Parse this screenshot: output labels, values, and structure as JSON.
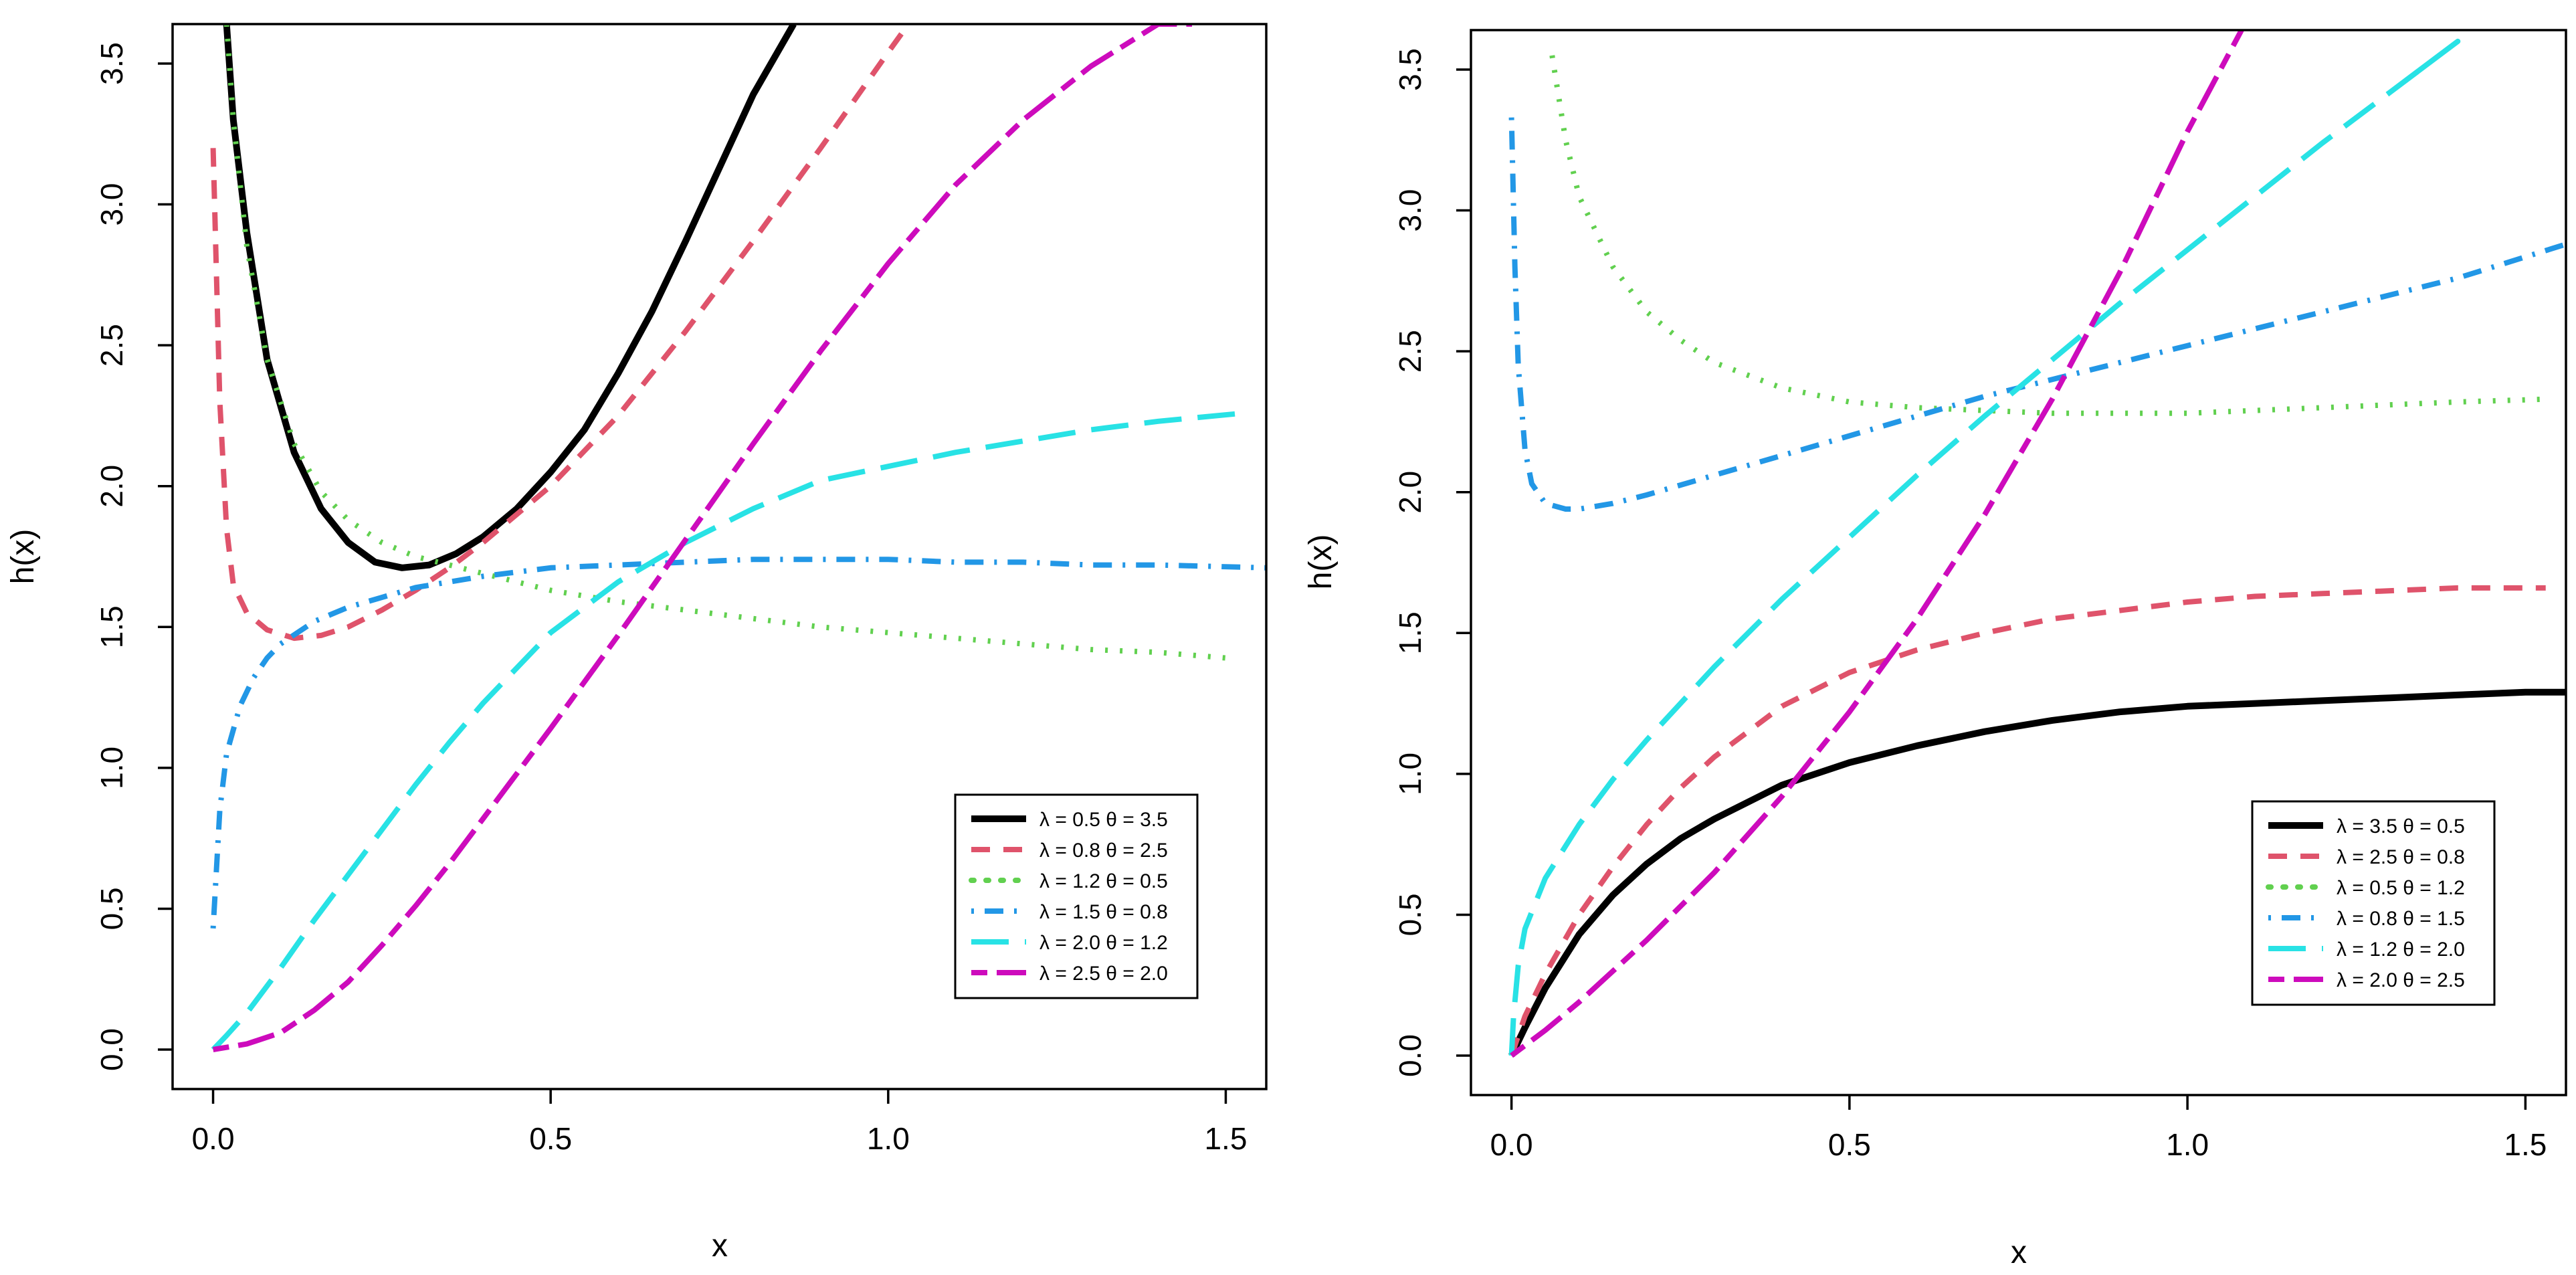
{
  "chart_data": [
    {
      "type": "line",
      "title": "",
      "xlabel": "x",
      "ylabel": "h(x)",
      "xlim": [
        -0.06,
        1.56
      ],
      "ylim": [
        -0.14,
        3.64
      ],
      "xticks": [
        "0.0",
        "0.5",
        "1.0",
        "1.5"
      ],
      "yticks": [
        "0.0",
        "0.5",
        "1.0",
        "1.5",
        "2.0",
        "2.5",
        "3.0",
        "3.5"
      ],
      "legend_position": "bottom-right",
      "series": [
        {
          "name": "λ = 0.5  θ = 3.5",
          "color": "#000000",
          "dash": "solid",
          "x": [
            0.02,
            0.03,
            0.05,
            0.08,
            0.12,
            0.16,
            0.2,
            0.24,
            0.28,
            0.32,
            0.36,
            0.4,
            0.45,
            0.5,
            0.55,
            0.6,
            0.65,
            0.7,
            0.75,
            0.8,
            0.86
          ],
          "y": [
            3.64,
            3.3,
            2.9,
            2.45,
            2.12,
            1.92,
            1.8,
            1.73,
            1.71,
            1.72,
            1.76,
            1.82,
            1.92,
            2.05,
            2.2,
            2.4,
            2.62,
            2.87,
            3.13,
            3.39,
            3.64
          ]
        },
        {
          "name": "λ = 0.8  θ = 2.5",
          "color": "#DF536B",
          "dash": "dashed",
          "x": [
            0.0,
            0.01,
            0.02,
            0.03,
            0.05,
            0.08,
            0.12,
            0.16,
            0.2,
            0.25,
            0.3,
            0.35,
            0.4,
            0.45,
            0.5,
            0.6,
            0.7,
            0.8,
            0.9,
            1.0,
            1.03
          ],
          "y": [
            3.2,
            2.3,
            1.85,
            1.65,
            1.55,
            1.49,
            1.46,
            1.47,
            1.5,
            1.56,
            1.63,
            1.71,
            1.8,
            1.9,
            2.0,
            2.25,
            2.55,
            2.87,
            3.2,
            3.54,
            3.64
          ]
        },
        {
          "name": "λ = 1.2  θ = 0.5",
          "color": "#61D04F",
          "dash": "dotted",
          "x": [
            0.02,
            0.03,
            0.05,
            0.08,
            0.12,
            0.16,
            0.2,
            0.25,
            0.3,
            0.35,
            0.4,
            0.5,
            0.6,
            0.7,
            0.8,
            0.9,
            1.0,
            1.1,
            1.2,
            1.3,
            1.4,
            1.5
          ],
          "y": [
            3.64,
            3.3,
            2.85,
            2.45,
            2.15,
            1.98,
            1.88,
            1.8,
            1.75,
            1.72,
            1.69,
            1.63,
            1.59,
            1.56,
            1.53,
            1.5,
            1.48,
            1.46,
            1.44,
            1.42,
            1.41,
            1.39
          ]
        },
        {
          "name": "λ = 1.5  θ = 0.8",
          "color": "#2297E6",
          "dash": "dotdash",
          "x": [
            0.0,
            0.01,
            0.02,
            0.04,
            0.06,
            0.08,
            0.1,
            0.15,
            0.2,
            0.3,
            0.4,
            0.5,
            0.6,
            0.7,
            0.8,
            0.9,
            1.0,
            1.1,
            1.2,
            1.3,
            1.4,
            1.56
          ],
          "y": [
            0.43,
            0.85,
            1.05,
            1.22,
            1.32,
            1.39,
            1.44,
            1.52,
            1.57,
            1.64,
            1.68,
            1.71,
            1.72,
            1.73,
            1.74,
            1.74,
            1.74,
            1.73,
            1.73,
            1.72,
            1.72,
            1.71
          ]
        },
        {
          "name": "λ = 2.0  θ = 1.2",
          "color": "#28E2E5",
          "dash": "longdash",
          "x": [
            0.0,
            0.02,
            0.05,
            0.1,
            0.15,
            0.2,
            0.25,
            0.3,
            0.35,
            0.4,
            0.5,
            0.6,
            0.7,
            0.8,
            0.9,
            1.0,
            1.1,
            1.2,
            1.3,
            1.4,
            1.53
          ],
          "y": [
            0.0,
            0.05,
            0.13,
            0.29,
            0.46,
            0.62,
            0.78,
            0.94,
            1.09,
            1.23,
            1.48,
            1.66,
            1.8,
            1.92,
            2.02,
            2.07,
            2.12,
            2.16,
            2.2,
            2.23,
            2.26
          ]
        },
        {
          "name": "λ = 2.5  θ = 2.0",
          "color": "#CD0BBC",
          "dash": "twodash",
          "x": [
            0.0,
            0.05,
            0.1,
            0.15,
            0.2,
            0.25,
            0.3,
            0.35,
            0.4,
            0.5,
            0.6,
            0.7,
            0.8,
            0.9,
            1.0,
            1.1,
            1.2,
            1.3,
            1.4,
            1.45
          ],
          "y": [
            0.0,
            0.02,
            0.06,
            0.14,
            0.24,
            0.37,
            0.51,
            0.66,
            0.82,
            1.14,
            1.47,
            1.81,
            2.15,
            2.48,
            2.79,
            3.07,
            3.3,
            3.49,
            3.64,
            3.64
          ]
        }
      ]
    },
    {
      "type": "line",
      "title": "",
      "xlabel": "x",
      "ylabel": "h(x)",
      "xlim": [
        -0.06,
        1.56
      ],
      "ylim": [
        -0.14,
        3.64
      ],
      "xticks": [
        "0.0",
        "0.5",
        "1.0",
        "1.5"
      ],
      "yticks": [
        "0.0",
        "0.5",
        "1.0",
        "1.5",
        "2.0",
        "2.5",
        "3.0",
        "3.5"
      ],
      "legend_position": "bottom-right",
      "series": [
        {
          "name": "λ = 3.5  θ = 0.5",
          "color": "#000000",
          "dash": "solid",
          "x": [
            0.0,
            0.02,
            0.05,
            0.1,
            0.15,
            0.2,
            0.25,
            0.3,
            0.4,
            0.5,
            0.6,
            0.7,
            0.8,
            0.9,
            1.0,
            1.1,
            1.2,
            1.3,
            1.4,
            1.5,
            1.56
          ],
          "y": [
            0.0,
            0.1,
            0.24,
            0.43,
            0.57,
            0.68,
            0.77,
            0.84,
            0.96,
            1.04,
            1.1,
            1.15,
            1.19,
            1.22,
            1.24,
            1.25,
            1.26,
            1.27,
            1.28,
            1.29,
            1.29
          ]
        },
        {
          "name": "λ = 2.5  θ = 0.8",
          "color": "#DF536B",
          "dash": "dashed",
          "x": [
            0.0,
            0.02,
            0.05,
            0.1,
            0.15,
            0.2,
            0.25,
            0.3,
            0.4,
            0.5,
            0.6,
            0.7,
            0.8,
            0.9,
            1.0,
            1.1,
            1.2,
            1.3,
            1.4,
            1.5,
            1.53
          ],
          "y": [
            0.0,
            0.14,
            0.29,
            0.5,
            0.67,
            0.82,
            0.95,
            1.06,
            1.24,
            1.36,
            1.44,
            1.5,
            1.55,
            1.58,
            1.61,
            1.63,
            1.64,
            1.65,
            1.66,
            1.66,
            1.66
          ]
        },
        {
          "name": "λ = 0.5  θ = 1.2",
          "color": "#61D04F",
          "dash": "dotted",
          "x": [
            0.06,
            0.08,
            0.1,
            0.15,
            0.2,
            0.25,
            0.3,
            0.4,
            0.5,
            0.6,
            0.7,
            0.8,
            0.9,
            1.0,
            1.1,
            1.2,
            1.3,
            1.4,
            1.53
          ],
          "y": [
            3.55,
            3.25,
            3.05,
            2.8,
            2.64,
            2.54,
            2.46,
            2.37,
            2.32,
            2.3,
            2.29,
            2.28,
            2.28,
            2.28,
            2.29,
            2.3,
            2.31,
            2.32,
            2.33
          ]
        },
        {
          "name": "λ = 0.8  θ = 1.5",
          "color": "#2297E6",
          "dash": "dotdash",
          "x": [
            0.0,
            0.005,
            0.01,
            0.02,
            0.03,
            0.05,
            0.08,
            0.1,
            0.15,
            0.2,
            0.3,
            0.4,
            0.5,
            0.6,
            0.7,
            0.8,
            0.9,
            1.0,
            1.1,
            1.2,
            1.3,
            1.4,
            1.56
          ],
          "y": [
            3.33,
            2.8,
            2.45,
            2.15,
            2.03,
            1.96,
            1.94,
            1.94,
            1.96,
            1.99,
            2.06,
            2.13,
            2.2,
            2.27,
            2.34,
            2.4,
            2.46,
            2.52,
            2.58,
            2.64,
            2.7,
            2.76,
            2.88
          ]
        },
        {
          "name": "λ = 1.2  θ = 2.0",
          "color": "#28E2E5",
          "dash": "longdash",
          "x": [
            0.0,
            0.003,
            0.01,
            0.02,
            0.05,
            0.1,
            0.15,
            0.2,
            0.3,
            0.4,
            0.5,
            0.6,
            0.7,
            0.8,
            0.9,
            1.0,
            1.1,
            1.2,
            1.3,
            1.4,
            1.3
          ],
          "y": [
            0.0,
            0.14,
            0.32,
            0.45,
            0.63,
            0.82,
            0.98,
            1.12,
            1.38,
            1.62,
            1.84,
            2.06,
            2.27,
            2.47,
            2.67,
            2.86,
            3.05,
            3.24,
            3.42,
            3.6,
            3.42
          ]
        },
        {
          "name": "λ = 2.0  θ = 2.5",
          "color": "#CD0BBC",
          "dash": "twodash",
          "x": [
            0.0,
            0.05,
            0.1,
            0.15,
            0.2,
            0.25,
            0.3,
            0.4,
            0.5,
            0.6,
            0.7,
            0.8,
            0.9,
            1.0,
            1.08
          ],
          "y": [
            0.0,
            0.09,
            0.19,
            0.3,
            0.41,
            0.53,
            0.65,
            0.92,
            1.22,
            1.55,
            1.92,
            2.33,
            2.78,
            3.28,
            3.64
          ]
        }
      ]
    }
  ]
}
